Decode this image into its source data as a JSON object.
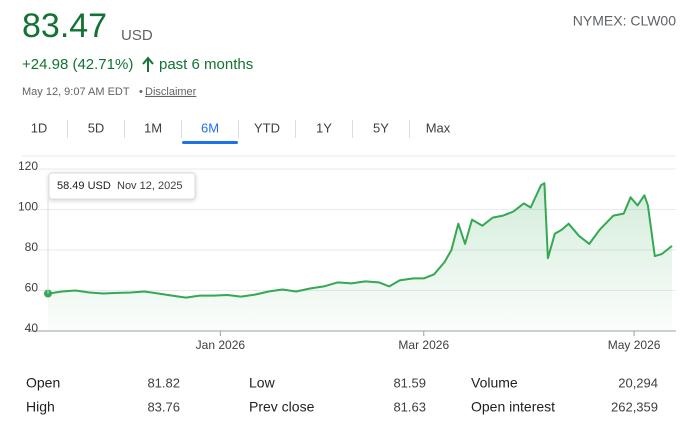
{
  "header": {
    "price": "83.47",
    "currency": "USD",
    "exchange": "NYMEX: CLW00",
    "change": "+24.98 (42.71%)",
    "period": "past 6 months",
    "timestamp": "May 12, 9:07 AM EDT",
    "disclaimer": "Disclaimer"
  },
  "tabs": [
    "1D",
    "5D",
    "1M",
    "6M",
    "YTD",
    "1Y",
    "5Y",
    "Max"
  ],
  "chart_data": {
    "type": "line",
    "x": [
      "2025-11-12",
      "2025-11-16",
      "2025-11-20",
      "2025-11-24",
      "2025-11-28",
      "2025-12-02",
      "2025-12-06",
      "2025-12-10",
      "2025-12-14",
      "2025-12-18",
      "2025-12-22",
      "2025-12-26",
      "2025-12-30",
      "2026-01-03",
      "2026-01-07",
      "2026-01-11",
      "2026-01-15",
      "2026-01-19",
      "2026-01-23",
      "2026-01-27",
      "2026-01-31",
      "2026-02-04",
      "2026-02-08",
      "2026-02-12",
      "2026-02-16",
      "2026-02-19",
      "2026-02-22",
      "2026-02-26",
      "2026-03-01",
      "2026-03-04",
      "2026-03-07",
      "2026-03-09",
      "2026-03-11",
      "2026-03-13",
      "2026-03-15",
      "2026-03-18",
      "2026-03-21",
      "2026-03-24",
      "2026-03-27",
      "2026-03-30",
      "2026-04-01",
      "2026-04-04",
      "2026-04-05",
      "2026-04-06",
      "2026-04-08",
      "2026-04-10",
      "2026-04-12",
      "2026-04-15",
      "2026-04-18",
      "2026-04-21",
      "2026-04-25",
      "2026-04-28",
      "2026-04-30",
      "2026-05-02",
      "2026-05-04",
      "2026-05-05",
      "2026-05-07",
      "2026-05-09",
      "2026-05-12"
    ],
    "series": [
      {
        "name": "CLW00",
        "color": "#34a853",
        "values": [
          58.49,
          59.5,
          60,
          59,
          58.5,
          58.8,
          59,
          59.5,
          58.5,
          57.5,
          56.5,
          57.5,
          57.5,
          57.8,
          57,
          58,
          59.5,
          60.5,
          59.5,
          61,
          62,
          64,
          63.5,
          64.5,
          64,
          62,
          65,
          66,
          66,
          68,
          74,
          80,
          93,
          83,
          95,
          92,
          96,
          97,
          99,
          103,
          101,
          112,
          113,
          76,
          88,
          90,
          93,
          87,
          83,
          90,
          97,
          98,
          106,
          102,
          107,
          102,
          77,
          78,
          82
        ]
      }
    ],
    "xlim": [
      "2025-11-12",
      "2026-05-12"
    ],
    "xticks": [
      {
        "value": "2026-01-01",
        "label": "Jan 2026"
      },
      {
        "value": "2026-03-01",
        "label": "Mar 2026"
      },
      {
        "value": "2026-05-01",
        "label": "May 2026"
      }
    ],
    "ylim": [
      40,
      120
    ],
    "yticks": [
      40,
      60,
      80,
      100,
      120
    ],
    "grid": true,
    "annotations": [
      "58.49 USD",
      "Nov 12, 2025"
    ]
  },
  "stats": {
    "rows": [
      [
        "Open",
        "81.82",
        "Low",
        "81.59",
        "Volume",
        "20,294"
      ],
      [
        "High",
        "83.76",
        "Prev close",
        "81.63",
        "Open interest",
        "262,359"
      ]
    ]
  }
}
